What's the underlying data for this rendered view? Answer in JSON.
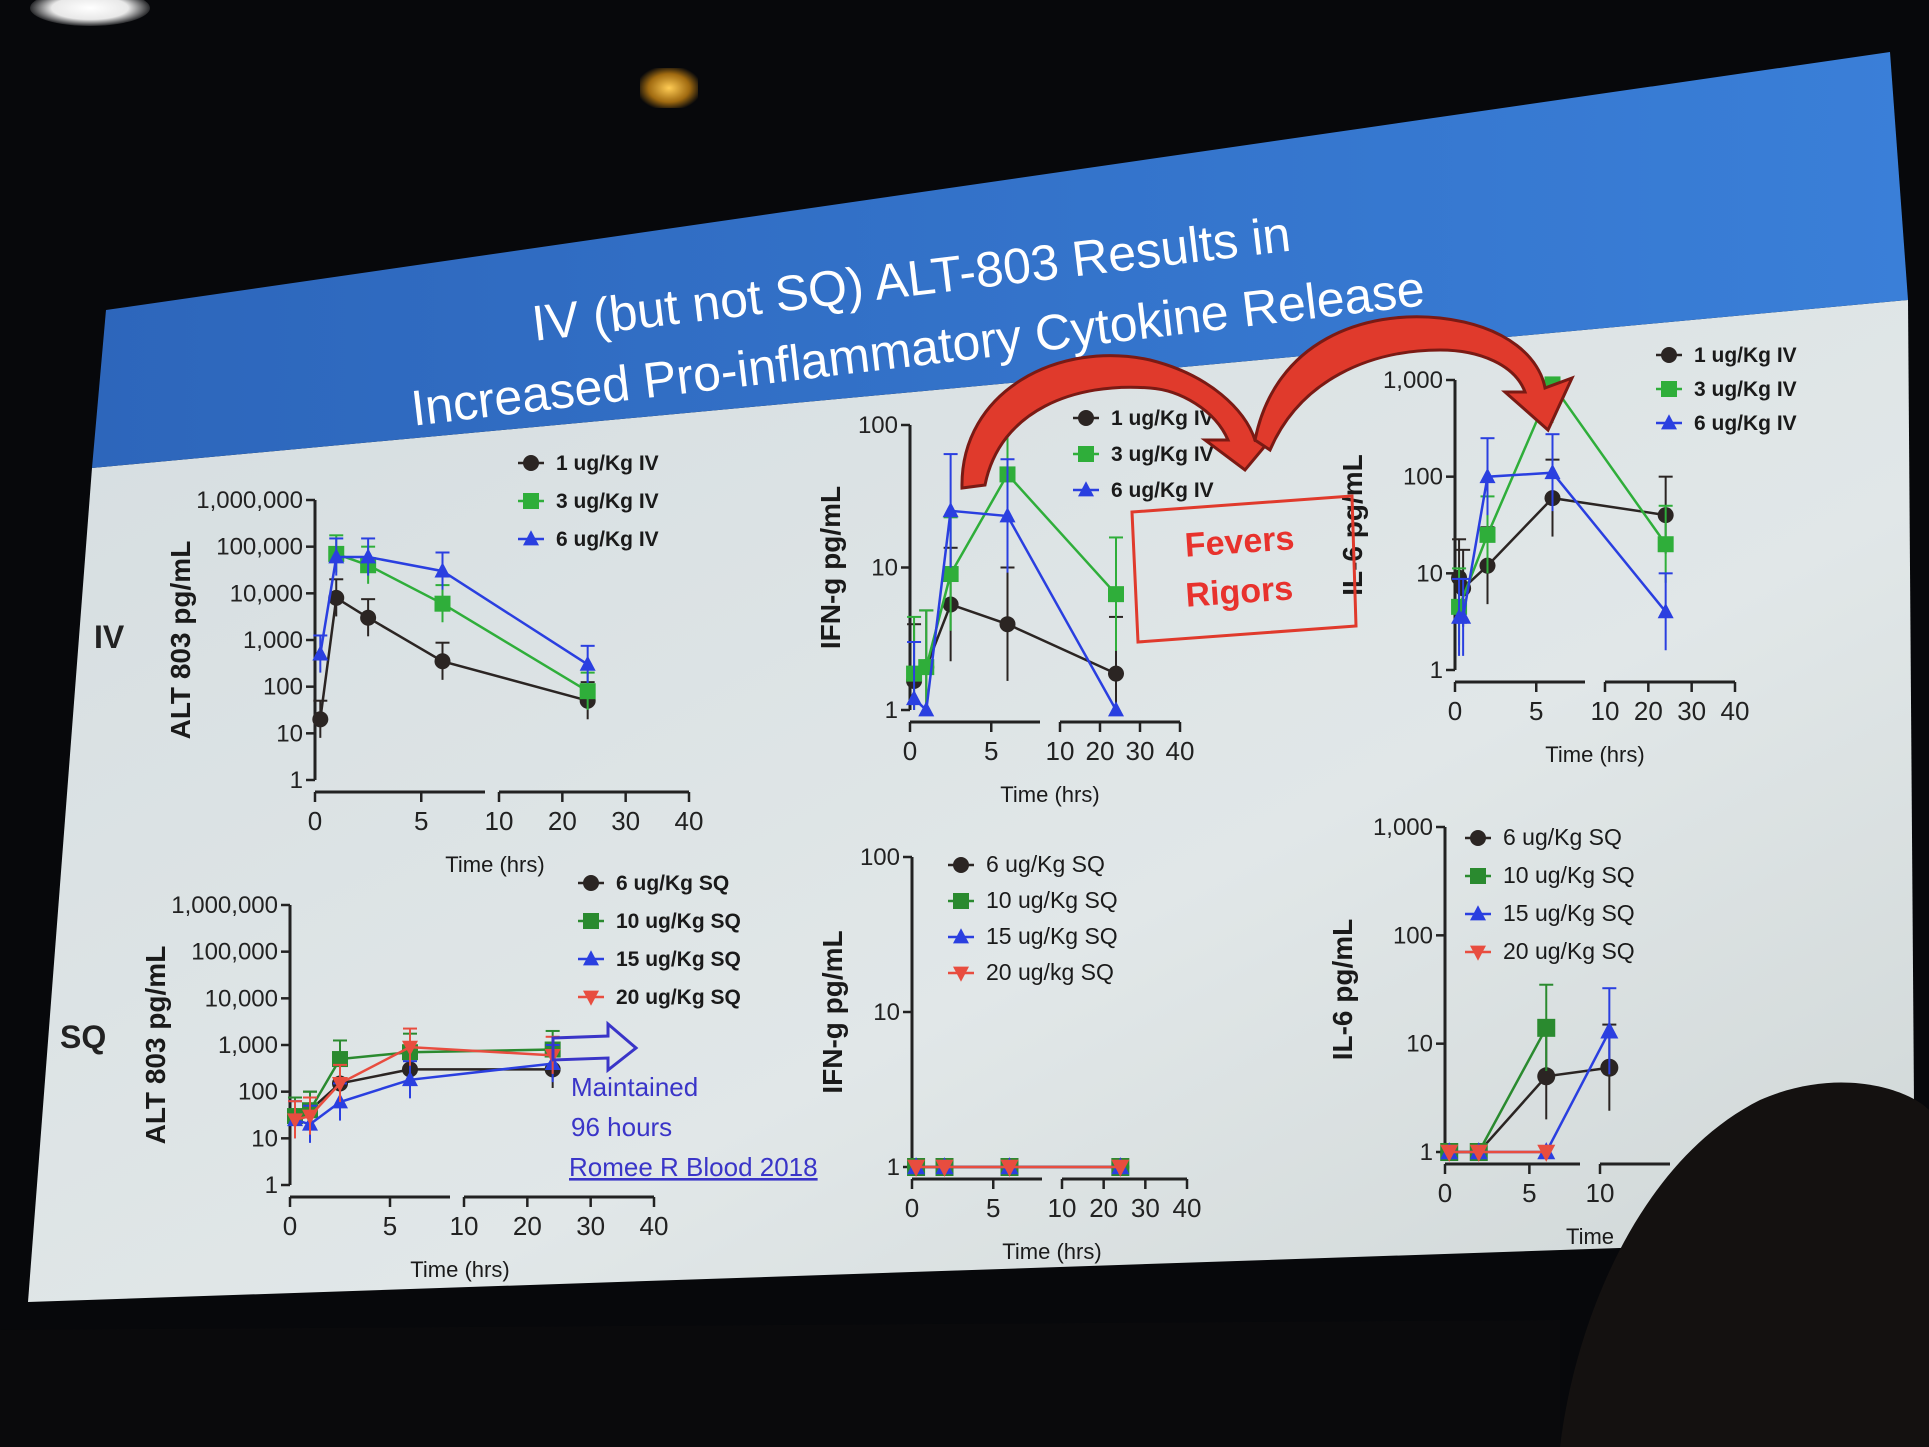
{
  "slide": {
    "title_line1": "IV (but not SQ) ALT-803 Results in",
    "title_line2": "Increased Pro-inflammatory Cytokine Release",
    "row_labels": [
      "IV",
      "SQ"
    ],
    "annotation": {
      "text_line1": "Fevers",
      "text_line2": "Rigors"
    },
    "maintained_note": [
      "Maintained",
      "96 hours",
      "Romee R Blood 2018"
    ],
    "colors": {
      "header_blue": "#2f6fc6",
      "slide_bg": "#dbe3e4",
      "black_series": "#2b2523",
      "green_series": "#2fae3a",
      "blue_series": "#2a3fe0",
      "red_series": "#e84d3f",
      "arrow_red": "#e03a2c"
    }
  },
  "chart_data": [
    {
      "id": "iv-alt803",
      "type": "line",
      "ylabel": "ALT 803 pg/mL",
      "xlabel": "Time (hrs)",
      "y_scale": "log",
      "ylim": [
        1,
        1000000
      ],
      "y_ticks": [
        "1",
        "10",
        "100",
        "1,000",
        "10,000",
        "100,000",
        "1,000,000"
      ],
      "x_ticks_left": [
        "0",
        "5"
      ],
      "x_ticks_right": [
        "10",
        "20",
        "30",
        "40"
      ],
      "legend": [
        "1 ug/Kg IV",
        "3 ug/Kg IV",
        "6 ug/Kg IV"
      ],
      "series": [
        {
          "name": "1 ug/Kg IV",
          "color": "#2b2523",
          "marker": "circle",
          "x": [
            0.25,
            1,
            2.5,
            6,
            24
          ],
          "y": [
            20,
            8000,
            3000,
            350,
            50
          ]
        },
        {
          "name": "3 ug/Kg IV",
          "color": "#2fae3a",
          "marker": "square",
          "x": [
            1,
            2.5,
            6,
            24
          ],
          "y": [
            70000,
            40000,
            6000,
            80
          ]
        },
        {
          "name": "6 ug/Kg IV",
          "color": "#2a3fe0",
          "marker": "triangle",
          "x": [
            0.25,
            1,
            2.5,
            6,
            24
          ],
          "y": [
            500,
            60000,
            60000,
            30000,
            300
          ]
        }
      ]
    },
    {
      "id": "iv-ifng",
      "type": "line",
      "ylabel": "IFN-g pg/mL",
      "xlabel": "Time (hrs)",
      "y_scale": "log",
      "ylim": [
        1,
        100
      ],
      "y_ticks": [
        "1",
        "10",
        "100"
      ],
      "x_ticks_left": [
        "0",
        "5"
      ],
      "x_ticks_right": [
        "10",
        "20",
        "30",
        "40"
      ],
      "legend": [
        "1 ug/Kg IV",
        "3 ug/Kg IV",
        "6 ug/Kg IV"
      ],
      "series": [
        {
          "name": "1 ug/Kg IV",
          "color": "#2b2523",
          "marker": "circle",
          "x": [
            0.25,
            1,
            2.5,
            6,
            24
          ],
          "y": [
            1.6,
            2,
            5.5,
            4,
            1.8
          ]
        },
        {
          "name": "3 ug/Kg IV",
          "color": "#2fae3a",
          "marker": "square",
          "x": [
            0.25,
            1,
            2.5,
            6,
            24
          ],
          "y": [
            1.8,
            2,
            9,
            45,
            6.5
          ]
        },
        {
          "name": "6 ug/Kg IV",
          "color": "#2a3fe0",
          "marker": "triangle",
          "x": [
            0.25,
            1,
            2.5,
            6,
            24
          ],
          "y": [
            1.2,
            1,
            25,
            23,
            1
          ]
        }
      ]
    },
    {
      "id": "iv-il6",
      "type": "line",
      "ylabel": "IL-6 pg/mL",
      "xlabel": "Time (hrs)",
      "y_scale": "log",
      "ylim": [
        1,
        1000
      ],
      "y_ticks": [
        "1",
        "10",
        "100",
        "1,000"
      ],
      "x_ticks_left": [
        "0",
        "5"
      ],
      "x_ticks_right": [
        "10",
        "20",
        "30",
        "40"
      ],
      "legend": [
        "1 ug/Kg IV",
        "3 ug/Kg IV",
        "6 ug/Kg IV"
      ],
      "series": [
        {
          "name": "1 ug/Kg IV",
          "color": "#2b2523",
          "marker": "circle",
          "x": [
            0.25,
            0.5,
            2,
            6,
            24
          ],
          "y": [
            9,
            7,
            12,
            60,
            40
          ]
        },
        {
          "name": "3 ug/Kg IV",
          "color": "#2fae3a",
          "marker": "square",
          "x": [
            0.25,
            2,
            6,
            24
          ],
          "y": [
            4.5,
            25,
            900,
            20
          ]
        },
        {
          "name": "6 ug/Kg IV",
          "color": "#2a3fe0",
          "marker": "triangle",
          "x": [
            0.25,
            0.5,
            2,
            6,
            24
          ],
          "y": [
            3.5,
            3.5,
            100,
            110,
            4
          ]
        }
      ]
    },
    {
      "id": "sq-alt803",
      "type": "line",
      "ylabel": "ALT 803 pg/mL",
      "xlabel": "Time (hrs)",
      "y_scale": "log",
      "ylim": [
        1,
        1000000
      ],
      "y_ticks": [
        "1",
        "10",
        "100",
        "1,000",
        "10,000",
        "100,000",
        "1,000,000"
      ],
      "x_ticks_left": [
        "0",
        "5"
      ],
      "x_ticks_right": [
        "10",
        "20",
        "30",
        "40"
      ],
      "legend": [
        "6 ug/Kg SQ",
        "10 ug/Kg SQ",
        "15 ug/Kg SQ",
        "20 ug/Kg SQ"
      ],
      "series": [
        {
          "name": "6 ug/Kg SQ",
          "color": "#2b2523",
          "marker": "circle",
          "x": [
            0.25,
            1,
            2.5,
            6,
            24
          ],
          "y": [
            30,
            40,
            150,
            300,
            300
          ]
        },
        {
          "name": "10 ug/Kg SQ",
          "color": "#2a8a2f",
          "marker": "square",
          "x": [
            0.25,
            1,
            2.5,
            6,
            24
          ],
          "y": [
            30,
            40,
            500,
            700,
            800
          ]
        },
        {
          "name": "15 ug/Kg SQ",
          "color": "#2a3fe0",
          "marker": "triangle",
          "x": [
            0.25,
            1,
            2.5,
            6,
            24
          ],
          "y": [
            25,
            20,
            60,
            180,
            400
          ]
        },
        {
          "name": "20 ug/kg SQ",
          "color": "#e84d3f",
          "marker": "invtriangle",
          "x": [
            0.25,
            1,
            2.5,
            6,
            24
          ],
          "y": [
            25,
            30,
            150,
            900,
            600
          ]
        }
      ]
    },
    {
      "id": "sq-ifng",
      "type": "line",
      "ylabel": "IFN-g pg/mL",
      "xlabel": "Time (hrs)",
      "y_scale": "log",
      "ylim": [
        1,
        100
      ],
      "y_ticks": [
        "1",
        "10",
        "100"
      ],
      "x_ticks_left": [
        "0",
        "5"
      ],
      "x_ticks_right": [
        "10",
        "20",
        "30",
        "40"
      ],
      "legend": [
        "6 ug/Kg SQ",
        "10 ug/Kg SQ",
        "15 ug/Kg SQ",
        "20 ug/kg SQ"
      ],
      "series": [
        {
          "name": "6 ug/Kg SQ",
          "color": "#2b2523",
          "marker": "circle",
          "x": [
            0.25,
            2,
            6,
            24
          ],
          "y": [
            1,
            1,
            1,
            1
          ]
        },
        {
          "name": "10 ug/Kg SQ",
          "color": "#2a8a2f",
          "marker": "square",
          "x": [
            0.25,
            2,
            6,
            24
          ],
          "y": [
            1,
            1,
            1,
            1
          ]
        },
        {
          "name": "15 ug/Kg SQ",
          "color": "#2a3fe0",
          "marker": "triangle",
          "x": [
            0.25,
            2,
            6,
            24
          ],
          "y": [
            1,
            1,
            1,
            1
          ]
        },
        {
          "name": "20 ug/kg SQ",
          "color": "#e84d3f",
          "marker": "invtriangle",
          "x": [
            0.25,
            2,
            6,
            24
          ],
          "y": [
            1,
            1,
            1,
            1
          ]
        }
      ]
    },
    {
      "id": "sq-il6",
      "type": "line",
      "ylabel": "IL-6 pg/mL",
      "xlabel": "Time",
      "y_scale": "log",
      "ylim": [
        1,
        1000
      ],
      "y_ticks": [
        "1",
        "10",
        "100",
        "1,000"
      ],
      "x_ticks_left": [
        "0",
        "5"
      ],
      "x_ticks_right": [
        "10"
      ],
      "legend": [
        "6 ug/Kg SQ",
        "10 ug/Kg SQ",
        "15 ug/Kg SQ",
        "20 ug/Kg SQ"
      ],
      "series": [
        {
          "name": "6 ug/Kg SQ",
          "color": "#2b2523",
          "marker": "circle",
          "x": [
            0.25,
            2,
            6,
            14
          ],
          "y": [
            1,
            1,
            5,
            6
          ]
        },
        {
          "name": "10 ug/Kg SQ",
          "color": "#2a8a2f",
          "marker": "square",
          "x": [
            0.25,
            2,
            6
          ],
          "y": [
            1,
            1,
            14
          ]
        },
        {
          "name": "15 ug/Kg SQ",
          "color": "#2a3fe0",
          "marker": "triangle",
          "x": [
            0.25,
            2,
            6,
            14
          ],
          "y": [
            1,
            1,
            1,
            13
          ]
        },
        {
          "name": "20 ug/Kg SQ",
          "color": "#e84d3f",
          "marker": "invtriangle",
          "x": [
            0.25,
            2,
            6
          ],
          "y": [
            1,
            1,
            1
          ]
        }
      ]
    }
  ]
}
